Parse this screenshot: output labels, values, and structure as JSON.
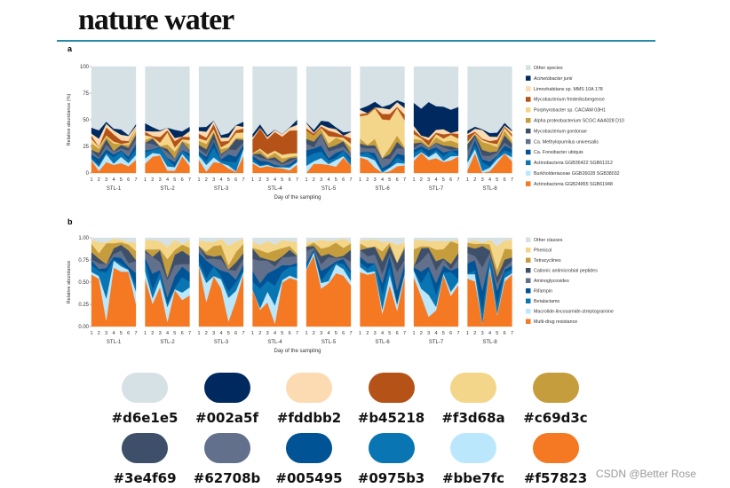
{
  "header": {
    "journal": "nature water"
  },
  "watermark": "CSDN @Better Rose",
  "chart_data": [
    {
      "type": "area",
      "panel": "a",
      "ylabel": "Relative abundance (%)",
      "xlabel": "Day of the sampling",
      "ylim": [
        0,
        100
      ],
      "yticks": [
        "0",
        "25",
        "50",
        "75",
        "100"
      ],
      "days": [
        "1",
        "2",
        "3",
        "4",
        "5",
        "6",
        "7"
      ],
      "groups": [
        "STL-1",
        "STL-2",
        "STL-3",
        "STL-4",
        "STL-5",
        "STL-6",
        "STL-7",
        "STL-8"
      ],
      "legend": [
        {
          "name": "Other species",
          "color": "#d6e1e5"
        },
        {
          "name": "Acinetobacter junii",
          "color": "#002a5f",
          "italic": true
        },
        {
          "name": "Limnohabitans sp. MMS 10A 178",
          "color": "#fddbb2"
        },
        {
          "name": "Mycobacterium frederiksbergense",
          "color": "#b45218"
        },
        {
          "name": "Porphyrobacter sp. CACIAM 03H1",
          "color": "#f3d68a"
        },
        {
          "name": "Alpha proteobacterium SCGC AAA028 D10",
          "color": "#c69d3c"
        },
        {
          "name": "Mycobacterium gordonae",
          "color": "#3e4f69"
        },
        {
          "name": "Ca. Methylopumilus universalis",
          "color": "#62708b"
        },
        {
          "name": "Ca. Fonsibacter ubiquis",
          "color": "#005495"
        },
        {
          "name": "Actinobacteria GGB36422 SGB61312",
          "color": "#0975b3"
        },
        {
          "name": "Burkholderiaceae GGB26028 SGB38032",
          "color": "#bbe7fc"
        },
        {
          "name": "Actinobacteria GGB24855 SGB61948",
          "color": "#f57823"
        }
      ]
    },
    {
      "type": "area",
      "panel": "b",
      "ylabel": "Relative abundance",
      "xlabel": "Day of the sampling",
      "ylim": [
        0,
        1
      ],
      "yticks": [
        "0.00",
        "0.25",
        "0.50",
        "0.75",
        "1.00"
      ],
      "days": [
        "1",
        "2",
        "3",
        "4",
        "5",
        "6",
        "7"
      ],
      "groups": [
        "STL-1",
        "STL-2",
        "STL-3",
        "STL-4",
        "STL-5",
        "STL-6",
        "STL-7",
        "STL-8"
      ],
      "legend": [
        {
          "name": "Other classes",
          "color": "#d6e1e5"
        },
        {
          "name": "Phenicol",
          "color": "#f3d68a"
        },
        {
          "name": "Tetracyclines",
          "color": "#c69d3c"
        },
        {
          "name": "Cationic antimicrobial peptides",
          "color": "#3e4f69"
        },
        {
          "name": "Aminoglycosides",
          "color": "#62708b"
        },
        {
          "name": "Rifampin",
          "color": "#005495"
        },
        {
          "name": "Betalactams",
          "color": "#0975b3"
        },
        {
          "name": "Macrolide-lincosamide-streptogramine",
          "color": "#bbe7fc"
        },
        {
          "name": "Multi-drug resistance",
          "color": "#f57823"
        }
      ]
    }
  ],
  "palette": {
    "items": [
      {
        "hex": "#d6e1e5"
      },
      {
        "hex": "#002a5f"
      },
      {
        "hex": "#fddbb2"
      },
      {
        "hex": "#b45218"
      },
      {
        "hex": "#f3d68a"
      },
      {
        "hex": "#c69d3c"
      },
      {
        "hex": "#3e4f69"
      },
      {
        "hex": "#62708b"
      },
      {
        "hex": "#005495"
      },
      {
        "hex": "#0975b3"
      },
      {
        "hex": "#bbe7fc"
      },
      {
        "hex": "#f57823"
      }
    ]
  }
}
